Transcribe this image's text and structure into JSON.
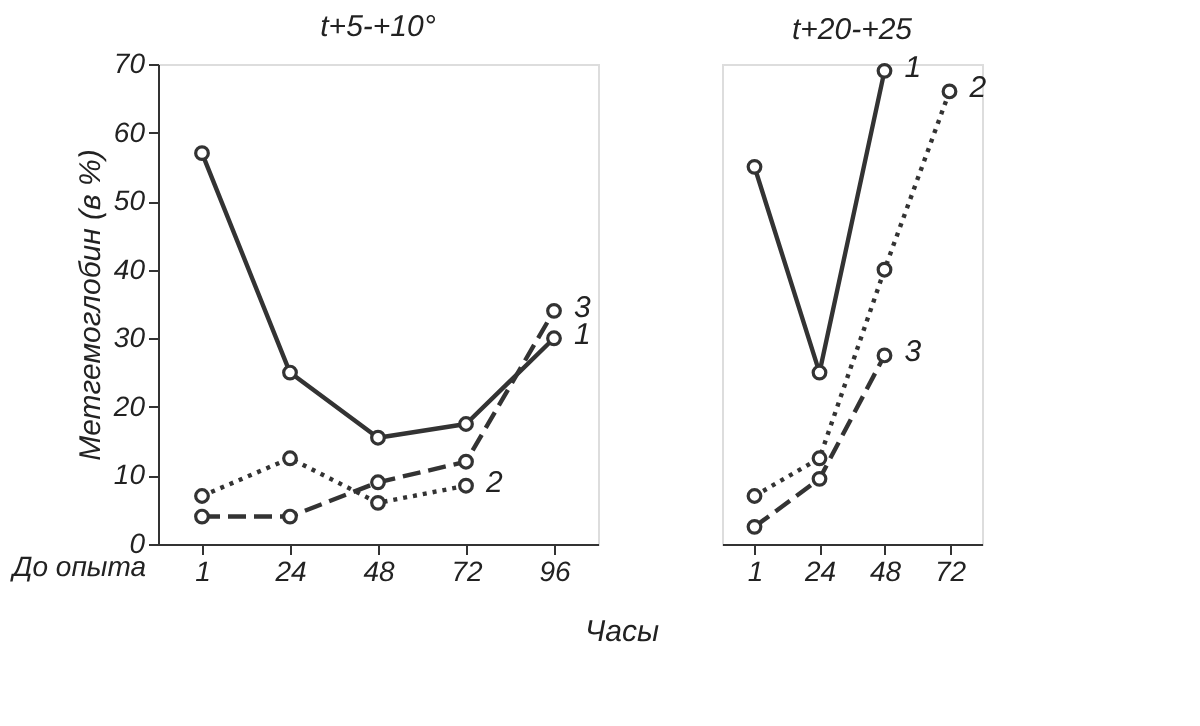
{
  "chart_data": [
    {
      "type": "line",
      "title": "t+5-+10°",
      "ylabel": "Метгемоглобин (в %)",
      "xlabel": "Часы",
      "annotations": [
        "До опыта"
      ],
      "categories": [
        "1",
        "24",
        "48",
        "72",
        "96"
      ],
      "ylim": [
        0,
        70
      ],
      "yticks": [
        0,
        10,
        20,
        30,
        40,
        50,
        60,
        70
      ],
      "grid": false,
      "legend": false,
      "marker": "circle",
      "series": [
        {
          "name": "1",
          "color": "#333333",
          "line_style": "solid",
          "values": [
            57,
            25,
            15.5,
            17.5,
            30
          ]
        },
        {
          "name": "2",
          "color": "#333333",
          "line_style": "dotted",
          "values": [
            7,
            12.5,
            6,
            8.5,
            null
          ]
        },
        {
          "name": "3",
          "color": "#333333",
          "line_style": "dashed",
          "values": [
            4,
            4,
            9,
            12,
            34
          ]
        }
      ]
    },
    {
      "type": "line",
      "title": "t+20-+25",
      "categories": [
        "1",
        "24",
        "48",
        "72"
      ],
      "ylim": [
        0,
        70
      ],
      "tick_labels": "x",
      "grid": false,
      "legend": false,
      "marker": "circle",
      "series": [
        {
          "name": "1",
          "color": "#333333",
          "line_style": "solid",
          "values": [
            55,
            25,
            69,
            null
          ]
        },
        {
          "name": "2",
          "color": "#333333",
          "line_style": "dotted",
          "values": [
            7,
            12.5,
            40,
            66
          ]
        },
        {
          "name": "3",
          "color": "#333333",
          "line_style": "dashed",
          "values": [
            2.5,
            9.5,
            27.5,
            null
          ]
        }
      ]
    }
  ]
}
